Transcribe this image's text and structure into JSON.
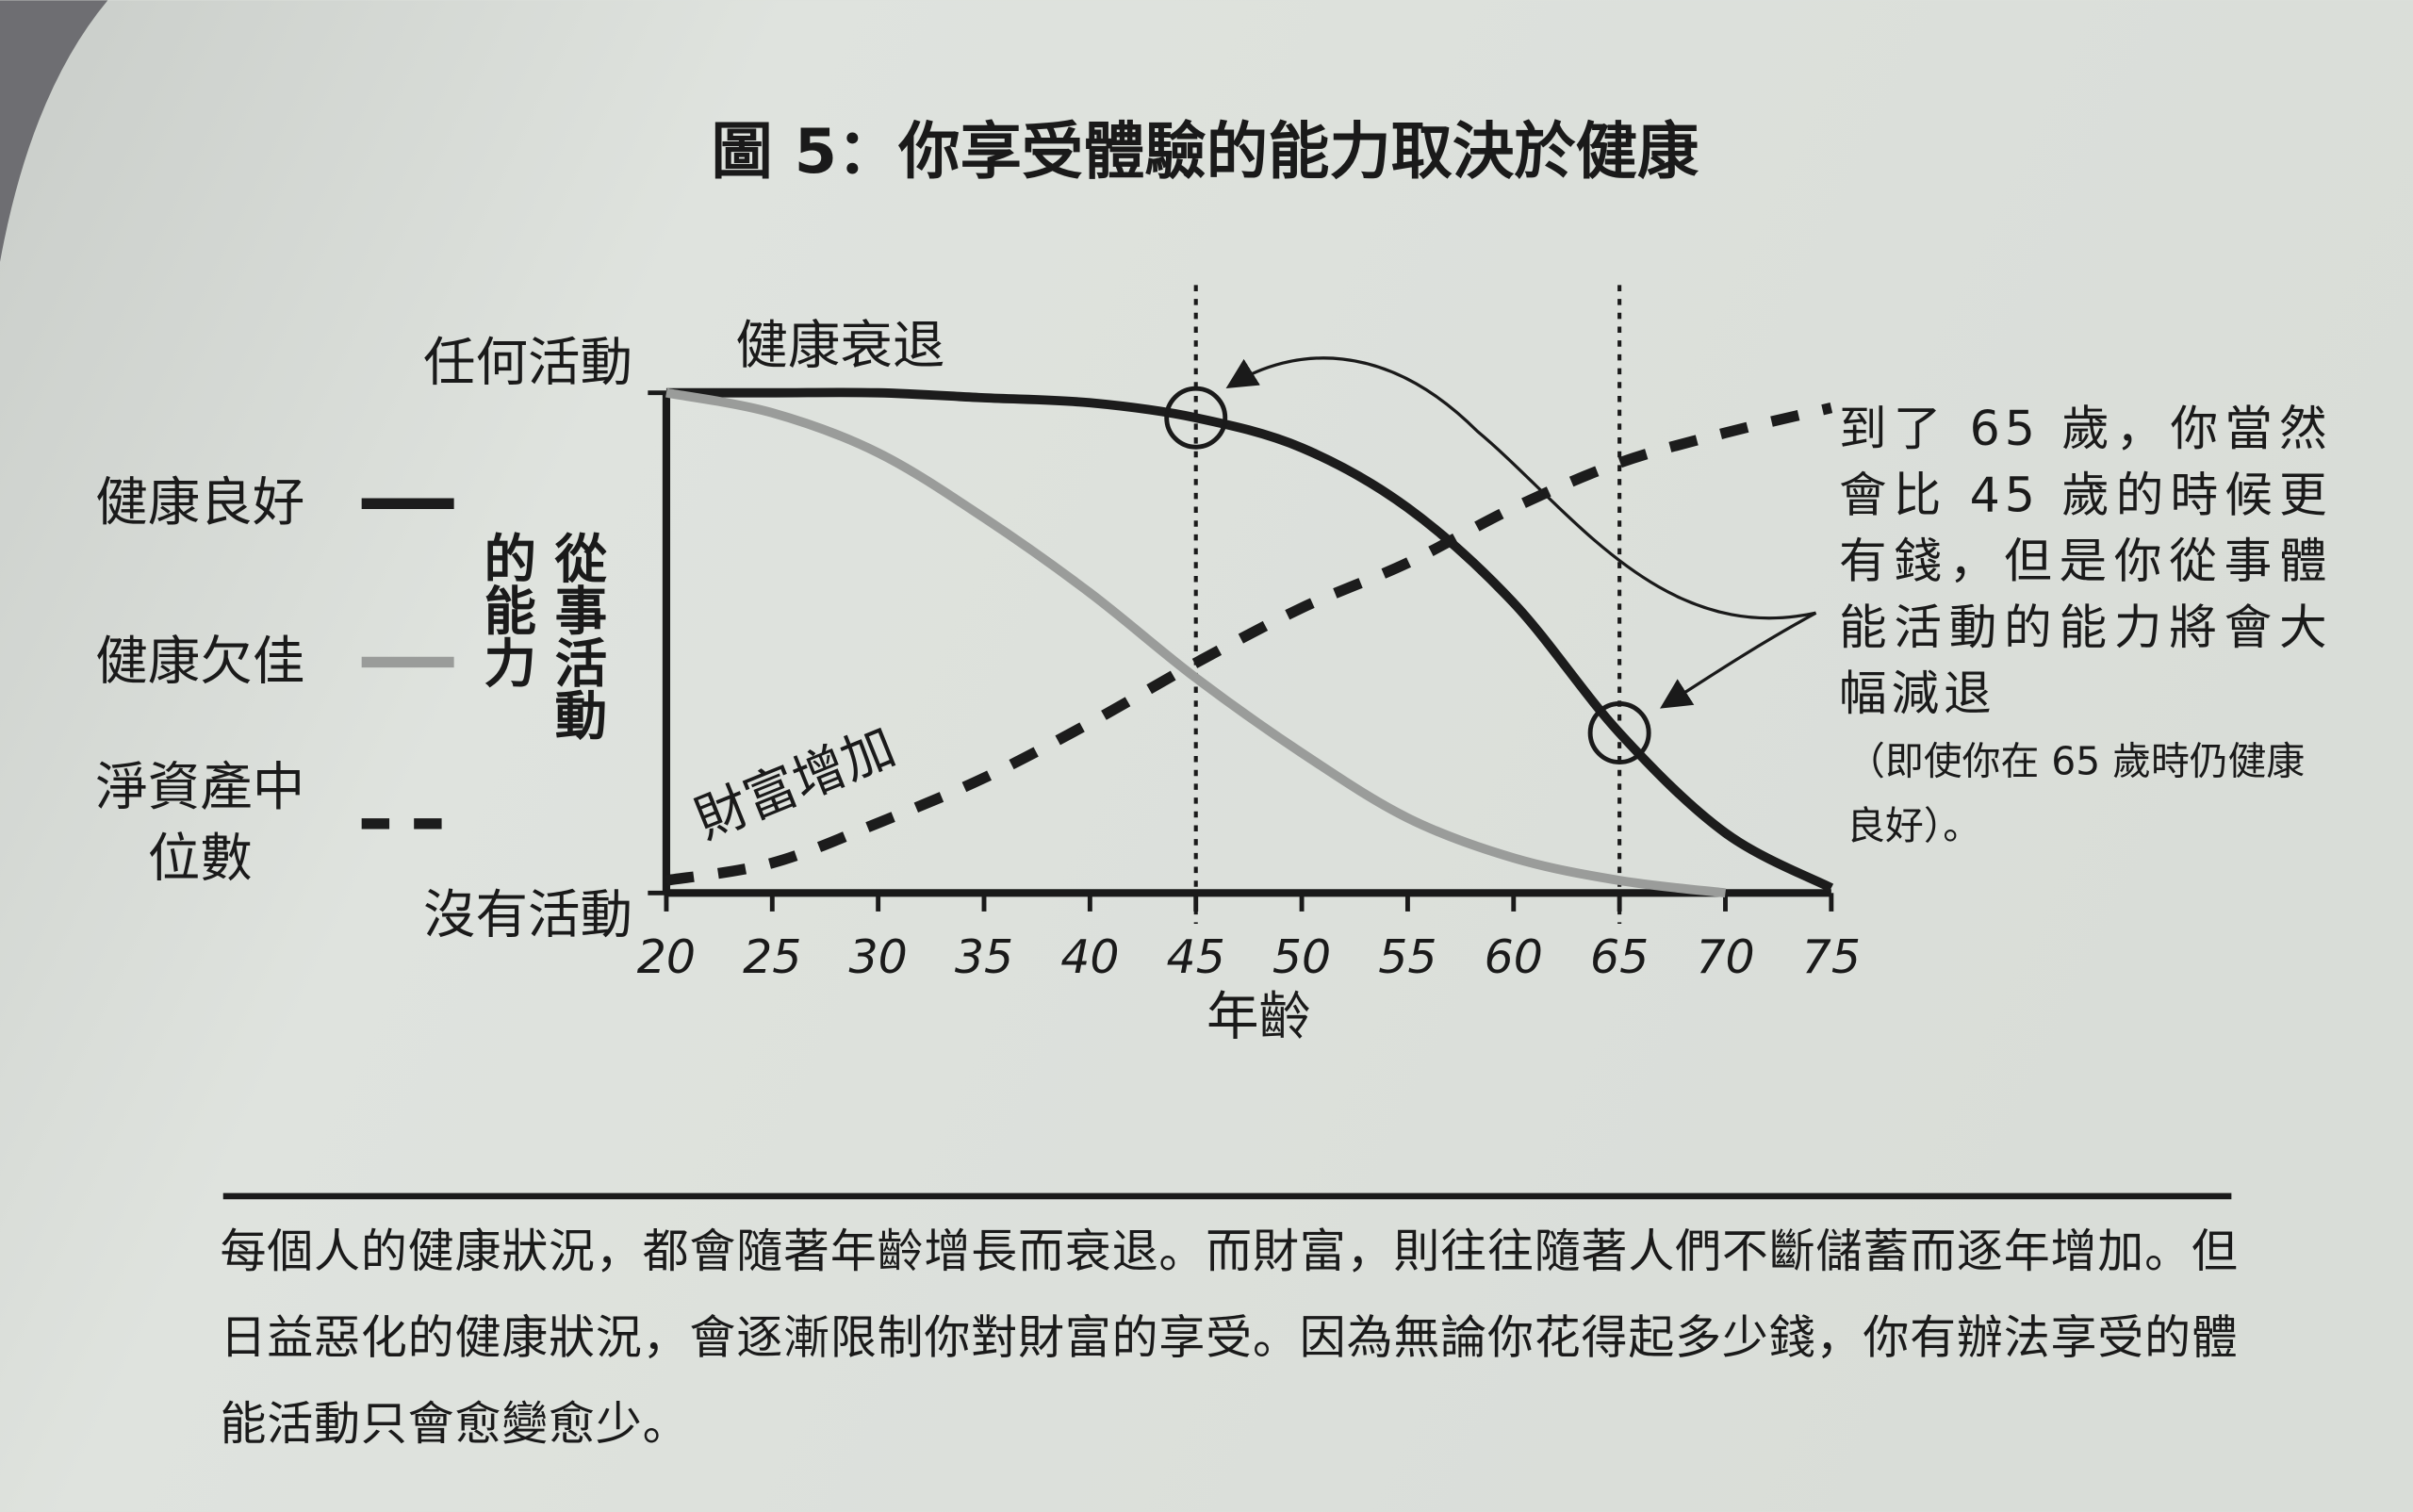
{
  "chart_data": {
    "type": "line",
    "title": "圖 5：你享受體驗的能力取決於健康",
    "x_label": "年齡",
    "y_label": "從事活動的能力",
    "x": [
      20,
      25,
      30,
      35,
      40,
      45,
      50,
      55,
      60,
      65,
      70,
      75
    ],
    "xlim": [
      20,
      75
    ],
    "xticks": [
      20,
      25,
      30,
      35,
      40,
      45,
      50,
      55,
      60,
      65,
      70,
      75
    ],
    "ylim": [
      0,
      100
    ],
    "yticks": [
      {
        "value": 0,
        "label": "沒有活動"
      },
      {
        "value": 100,
        "label": "任何活動"
      }
    ],
    "vlines": [
      45,
      65
    ],
    "series": [
      {
        "name": "健康良好",
        "color": "#1c1c1c",
        "line_style": "solid",
        "values": [
          100,
          100,
          100,
          99,
          98,
          95,
          89,
          77,
          58,
          32,
          12,
          1
        ]
      },
      {
        "name": "健康欠佳",
        "color": "#9a9c9a",
        "line_style": "solid",
        "values": [
          100,
          96,
          88,
          75,
          60,
          43,
          28,
          15,
          7,
          2.5,
          0,
          null
        ]
      },
      {
        "name": "淨資產中位數",
        "color": "#1c1c1c",
        "line_style": "dashed",
        "values": [
          2.5,
          6,
          14,
          23,
          34,
          46,
          57,
          66,
          77,
          86,
          92,
          97
        ]
      }
    ],
    "annotations": [
      "健康衰退",
      "財富增加",
      "到了 65 歲，你當然會比 45 歲的時候更有錢，但是你從事體能活動的能力將會大幅減退",
      "（即使你在 65 歲時仍健康良好）。"
    ],
    "caption": "每個人的健康狀況，都會隨著年齡增長而衰退。而財富，則往往隨著人們不斷儲蓄而逐年增加。但日益惡化的健康狀況，會逐漸限制你對財富的享受。因為無論你花得起多少錢，你有辦法享受的體能活動只會愈變愈少。"
  }
}
